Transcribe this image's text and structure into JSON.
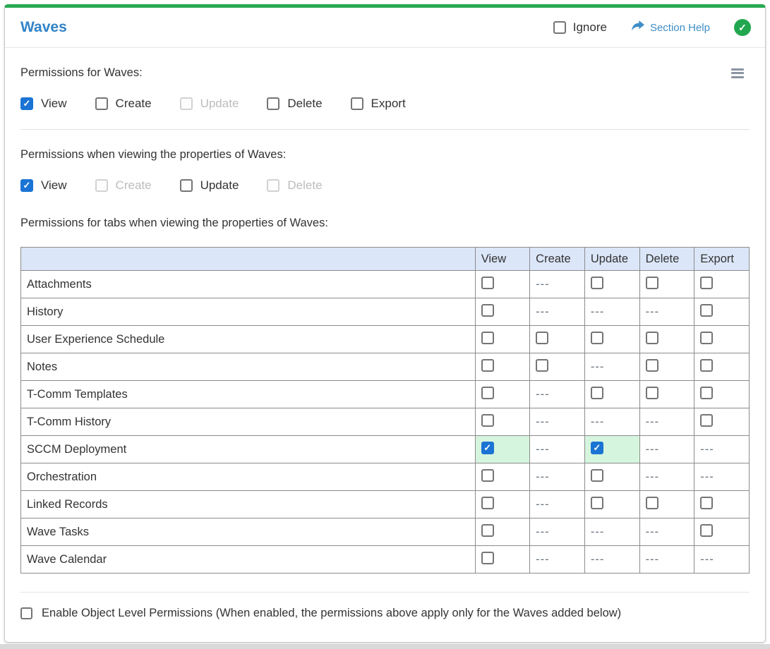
{
  "section": {
    "title": "Waves",
    "ignore_label": "Ignore",
    "ignore_checked": false,
    "help_label": "Section Help",
    "status_icon": "green-check-circle"
  },
  "permissions_main": {
    "label": "Permissions for Waves:",
    "options": [
      {
        "label": "View",
        "checked": true,
        "disabled": false
      },
      {
        "label": "Create",
        "checked": false,
        "disabled": false
      },
      {
        "label": "Update",
        "checked": false,
        "disabled": true
      },
      {
        "label": "Delete",
        "checked": false,
        "disabled": false
      },
      {
        "label": "Export",
        "checked": false,
        "disabled": false
      }
    ]
  },
  "permissions_properties": {
    "label": "Permissions when viewing the properties of Waves:",
    "options": [
      {
        "label": "View",
        "checked": true,
        "disabled": false
      },
      {
        "label": "Create",
        "checked": false,
        "disabled": true
      },
      {
        "label": "Update",
        "checked": false,
        "disabled": false
      },
      {
        "label": "Delete",
        "checked": false,
        "disabled": true
      }
    ]
  },
  "tabs_table": {
    "label": "Permissions for tabs when viewing the properties of Waves:",
    "columns": [
      "View",
      "Create",
      "Update",
      "Delete",
      "Export"
    ],
    "none_marker": "---",
    "rows": [
      {
        "name": "Attachments",
        "cells": [
          "unchecked",
          "none",
          "unchecked",
          "unchecked",
          "unchecked"
        ]
      },
      {
        "name": "History",
        "cells": [
          "unchecked",
          "none",
          "none",
          "none",
          "unchecked"
        ]
      },
      {
        "name": "User Experience Schedule",
        "cells": [
          "unchecked",
          "unchecked",
          "unchecked",
          "unchecked",
          "unchecked"
        ]
      },
      {
        "name": "Notes",
        "cells": [
          "unchecked",
          "unchecked",
          "none",
          "unchecked",
          "unchecked"
        ]
      },
      {
        "name": "T-Comm Templates",
        "cells": [
          "unchecked",
          "none",
          "unchecked",
          "unchecked",
          "unchecked"
        ]
      },
      {
        "name": "T-Comm History",
        "cells": [
          "unchecked",
          "none",
          "none",
          "none",
          "unchecked"
        ]
      },
      {
        "name": "SCCM Deployment",
        "cells": [
          "checked",
          "none",
          "checked",
          "none",
          "none"
        ]
      },
      {
        "name": "Orchestration",
        "cells": [
          "unchecked",
          "none",
          "unchecked",
          "none",
          "none"
        ]
      },
      {
        "name": "Linked Records",
        "cells": [
          "unchecked",
          "none",
          "unchecked",
          "unchecked",
          "unchecked"
        ]
      },
      {
        "name": "Wave Tasks",
        "cells": [
          "unchecked",
          "none",
          "none",
          "none",
          "unchecked"
        ]
      },
      {
        "name": "Wave Calendar",
        "cells": [
          "unchecked",
          "none",
          "none",
          "none",
          "none"
        ]
      }
    ]
  },
  "object_level": {
    "label": "Enable Object Level Permissions (When enabled, the permissions above apply only for the Waves added below)",
    "checked": false
  },
  "colors": {
    "accent_green": "#28a952",
    "title_blue": "#3183c8",
    "link_blue": "#3e8ec7",
    "checked_blue": "#1b74d4",
    "granted_cell_green": "#d6f5de",
    "table_header_blue": "#dbe6f8"
  }
}
